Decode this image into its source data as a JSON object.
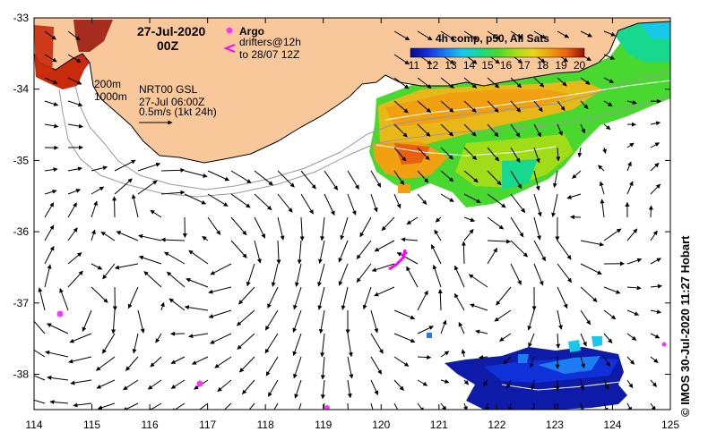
{
  "header": {
    "date": "27-Jul-2020",
    "hour": "00Z"
  },
  "argo_legend": {
    "argo_label": "Argo",
    "drifters_label": "drifters@12h",
    "drifters_sub": "to 28/07 12Z",
    "argo_color": "#ff33ff",
    "drifter_color": "#ff00ff"
  },
  "depth_legend": {
    "contour_1": "200m",
    "contour_2": "1000m"
  },
  "product": {
    "line1": "NRT00 GSL",
    "line2": "27-Jul 06:00Z",
    "scale_label": "0.5m/s (1kt 24h)"
  },
  "colorbar": {
    "title": "4h comp, p50, All Sats",
    "ticks": [
      "11",
      "12",
      "13",
      "14",
      "15",
      "16",
      "17",
      "18",
      "19",
      "20"
    ],
    "colors": [
      "#0a0a8c",
      "#1030d8",
      "#1c7cf0",
      "#18c8e8",
      "#18d890",
      "#48d830",
      "#a0dc18",
      "#e8d818",
      "#f0a010",
      "#e86010",
      "#c81c0c",
      "#961008"
    ]
  },
  "axes": {
    "x_ticks": [
      "114",
      "115",
      "116",
      "117",
      "118",
      "119",
      "120",
      "121",
      "122",
      "123",
      "124",
      "125"
    ],
    "y_ticks": [
      "-33",
      "-34",
      "-35",
      "-36",
      "-37",
      "-38"
    ]
  },
  "credit": "© IMOS 30-Jul-2020 11:27 Hobart",
  "colors": {
    "land": "#f9c89a",
    "ocean": "#ffffff"
  }
}
